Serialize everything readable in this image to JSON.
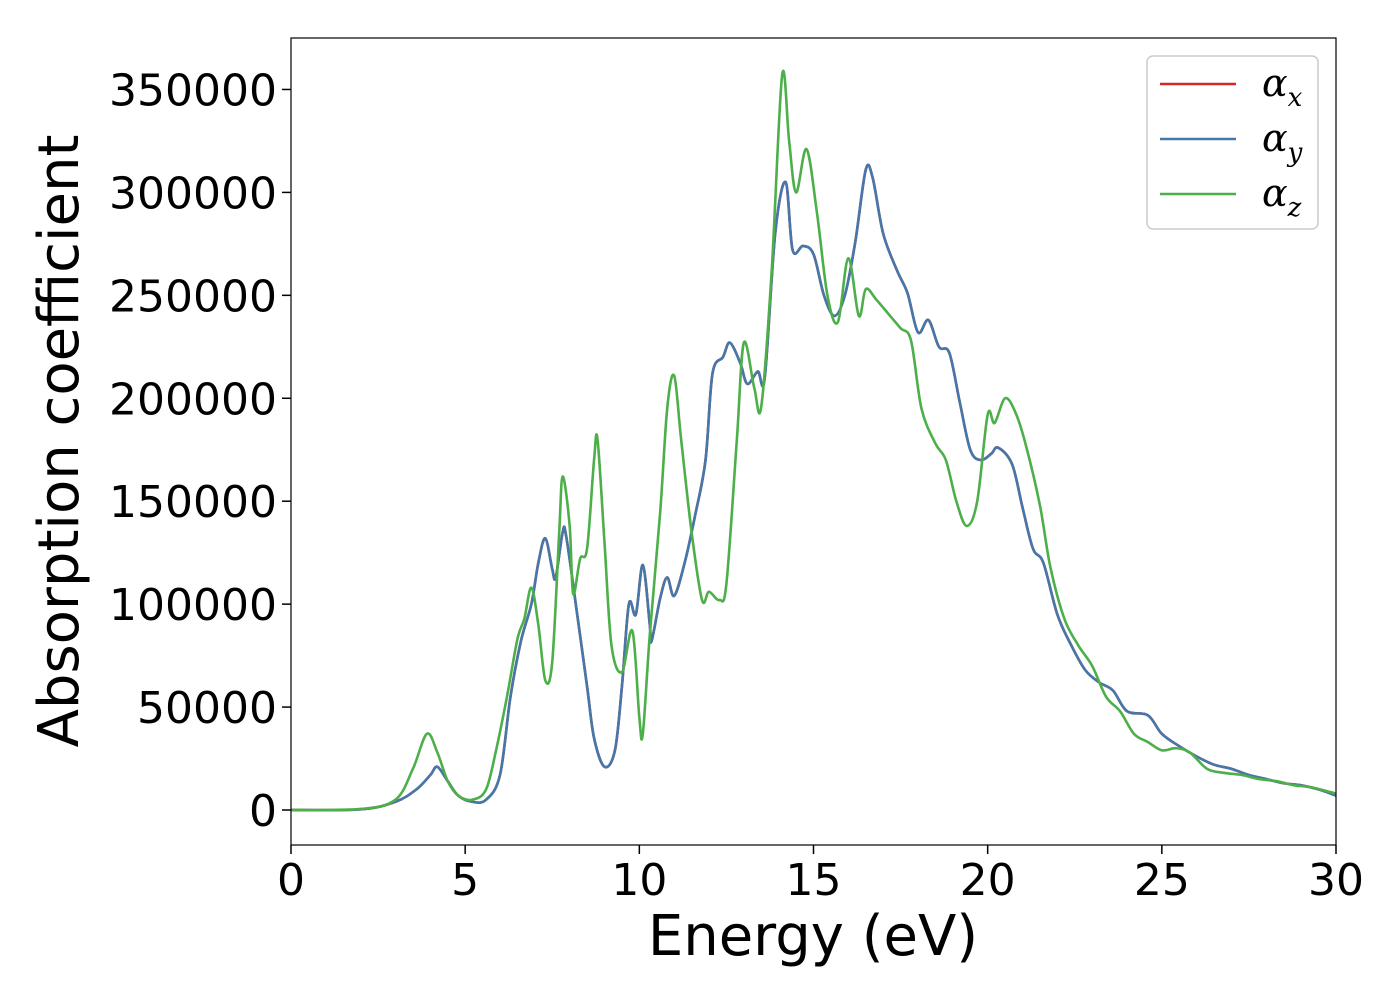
{
  "chart_data": {
    "type": "line",
    "xlabel": "Energy (eV)",
    "ylabel": "Absorption coefficient",
    "xlim": [
      0,
      30
    ],
    "ylim": [
      -17000,
      375000
    ],
    "xticks": [
      "0",
      "5",
      "10",
      "15",
      "20",
      "25",
      "30"
    ],
    "yticks": [
      "0",
      "50000",
      "100000",
      "150000",
      "200000",
      "250000",
      "300000",
      "350000"
    ],
    "grid": false,
    "legend_position": "top-right",
    "series": [
      {
        "name": "α_x",
        "symbol": "α",
        "subscript": "x",
        "color": "#d62728",
        "points": [
          [
            0,
            0
          ],
          [
            2,
            300
          ],
          [
            3,
            4000
          ],
          [
            3.6,
            10000
          ],
          [
            4.0,
            17000
          ],
          [
            4.2,
            21000
          ],
          [
            4.5,
            14000
          ],
          [
            4.8,
            7000
          ],
          [
            5.2,
            4000
          ],
          [
            5.6,
            5000
          ],
          [
            6.0,
            17000
          ],
          [
            6.3,
            55000
          ],
          [
            6.6,
            82000
          ],
          [
            6.9,
            100000
          ],
          [
            7.1,
            120000
          ],
          [
            7.3,
            132000
          ],
          [
            7.5,
            117000
          ],
          [
            7.6,
            113000
          ],
          [
            7.8,
            135000
          ],
          [
            7.9,
            133000
          ],
          [
            8.2,
            97000
          ],
          [
            8.5,
            60000
          ],
          [
            8.7,
            35000
          ],
          [
            9.0,
            21000
          ],
          [
            9.3,
            29000
          ],
          [
            9.5,
            60000
          ],
          [
            9.7,
            100000
          ],
          [
            9.9,
            95000
          ],
          [
            10.1,
            119000
          ],
          [
            10.3,
            90000
          ],
          [
            10.35,
            82000
          ],
          [
            10.6,
            103000
          ],
          [
            10.8,
            113000
          ],
          [
            11.0,
            104000
          ],
          [
            11.3,
            120000
          ],
          [
            11.6,
            143000
          ],
          [
            11.9,
            170000
          ],
          [
            12.1,
            212000
          ],
          [
            12.4,
            220000
          ],
          [
            12.6,
            227000
          ],
          [
            12.9,
            217000
          ],
          [
            13.1,
            207000
          ],
          [
            13.4,
            213000
          ],
          [
            13.6,
            210000
          ],
          [
            13.9,
            280000
          ],
          [
            14.2,
            305000
          ],
          [
            14.4,
            272000
          ],
          [
            14.7,
            274000
          ],
          [
            15.0,
            270000
          ],
          [
            15.3,
            250000
          ],
          [
            15.6,
            240000
          ],
          [
            15.9,
            250000
          ],
          [
            16.2,
            276000
          ],
          [
            16.5,
            311000
          ],
          [
            16.7,
            307000
          ],
          [
            17.0,
            280000
          ],
          [
            17.4,
            262000
          ],
          [
            17.7,
            251000
          ],
          [
            18.0,
            232000
          ],
          [
            18.3,
            238000
          ],
          [
            18.6,
            225000
          ],
          [
            18.9,
            222000
          ],
          [
            19.2,
            198000
          ],
          [
            19.5,
            175000
          ],
          [
            19.8,
            170000
          ],
          [
            20.1,
            173000
          ],
          [
            20.3,
            176000
          ],
          [
            20.7,
            168000
          ],
          [
            21.0,
            147000
          ],
          [
            21.3,
            127000
          ],
          [
            21.6,
            120000
          ],
          [
            22.0,
            95000
          ],
          [
            22.4,
            80000
          ],
          [
            22.8,
            68000
          ],
          [
            23.2,
            62000
          ],
          [
            23.6,
            58000
          ],
          [
            24.0,
            48000
          ],
          [
            24.6,
            46000
          ],
          [
            25.0,
            37000
          ],
          [
            25.5,
            31000
          ],
          [
            26.0,
            26000
          ],
          [
            26.5,
            22000
          ],
          [
            27.0,
            20000
          ],
          [
            27.5,
            17000
          ],
          [
            28.0,
            15000
          ],
          [
            28.5,
            13000
          ],
          [
            29.0,
            12000
          ],
          [
            29.5,
            10000
          ],
          [
            30.0,
            7000
          ]
        ]
      },
      {
        "name": "α_y",
        "symbol": "α",
        "subscript": "y",
        "color": "#4477aa",
        "points": [
          [
            0,
            0
          ],
          [
            2,
            300
          ],
          [
            3,
            4000
          ],
          [
            3.6,
            10000
          ],
          [
            4.0,
            17000
          ],
          [
            4.2,
            21000
          ],
          [
            4.5,
            14000
          ],
          [
            4.8,
            7000
          ],
          [
            5.2,
            4000
          ],
          [
            5.6,
            5000
          ],
          [
            6.0,
            17000
          ],
          [
            6.3,
            55000
          ],
          [
            6.6,
            82000
          ],
          [
            6.9,
            100000
          ],
          [
            7.1,
            120000
          ],
          [
            7.3,
            132000
          ],
          [
            7.5,
            117000
          ],
          [
            7.6,
            113000
          ],
          [
            7.8,
            135000
          ],
          [
            7.9,
            133000
          ],
          [
            8.2,
            97000
          ],
          [
            8.5,
            60000
          ],
          [
            8.7,
            35000
          ],
          [
            9.0,
            21000
          ],
          [
            9.3,
            29000
          ],
          [
            9.5,
            60000
          ],
          [
            9.7,
            100000
          ],
          [
            9.9,
            95000
          ],
          [
            10.1,
            119000
          ],
          [
            10.3,
            90000
          ],
          [
            10.35,
            82000
          ],
          [
            10.6,
            103000
          ],
          [
            10.8,
            113000
          ],
          [
            11.0,
            104000
          ],
          [
            11.3,
            120000
          ],
          [
            11.6,
            143000
          ],
          [
            11.9,
            170000
          ],
          [
            12.1,
            212000
          ],
          [
            12.4,
            220000
          ],
          [
            12.6,
            227000
          ],
          [
            12.9,
            217000
          ],
          [
            13.1,
            207000
          ],
          [
            13.4,
            213000
          ],
          [
            13.6,
            210000
          ],
          [
            13.9,
            280000
          ],
          [
            14.2,
            305000
          ],
          [
            14.4,
            272000
          ],
          [
            14.7,
            274000
          ],
          [
            15.0,
            270000
          ],
          [
            15.3,
            250000
          ],
          [
            15.6,
            240000
          ],
          [
            15.9,
            250000
          ],
          [
            16.2,
            276000
          ],
          [
            16.5,
            311000
          ],
          [
            16.7,
            307000
          ],
          [
            17.0,
            280000
          ],
          [
            17.4,
            262000
          ],
          [
            17.7,
            251000
          ],
          [
            18.0,
            232000
          ],
          [
            18.3,
            238000
          ],
          [
            18.6,
            225000
          ],
          [
            18.9,
            222000
          ],
          [
            19.2,
            198000
          ],
          [
            19.5,
            175000
          ],
          [
            19.8,
            170000
          ],
          [
            20.1,
            173000
          ],
          [
            20.3,
            176000
          ],
          [
            20.7,
            168000
          ],
          [
            21.0,
            147000
          ],
          [
            21.3,
            127000
          ],
          [
            21.6,
            120000
          ],
          [
            22.0,
            95000
          ],
          [
            22.4,
            80000
          ],
          [
            22.8,
            68000
          ],
          [
            23.2,
            62000
          ],
          [
            23.6,
            58000
          ],
          [
            24.0,
            48000
          ],
          [
            24.6,
            46000
          ],
          [
            25.0,
            37000
          ],
          [
            25.5,
            31000
          ],
          [
            26.0,
            26000
          ],
          [
            26.5,
            22000
          ],
          [
            27.0,
            20000
          ],
          [
            27.5,
            17000
          ],
          [
            28.0,
            15000
          ],
          [
            28.5,
            13000
          ],
          [
            29.0,
            12000
          ],
          [
            29.5,
            10000
          ],
          [
            30.0,
            7000
          ]
        ]
      },
      {
        "name": "α_z",
        "symbol": "α",
        "subscript": "z",
        "color": "#4daf4a",
        "points": [
          [
            0,
            0
          ],
          [
            2,
            500
          ],
          [
            3,
            5000
          ],
          [
            3.5,
            20000
          ],
          [
            3.9,
            37000
          ],
          [
            4.2,
            28000
          ],
          [
            4.5,
            14000
          ],
          [
            4.8,
            7000
          ],
          [
            5.2,
            5000
          ],
          [
            5.6,
            10000
          ],
          [
            5.9,
            30000
          ],
          [
            6.2,
            55000
          ],
          [
            6.5,
            83000
          ],
          [
            6.7,
            93000
          ],
          [
            6.9,
            108000
          ],
          [
            7.1,
            90000
          ],
          [
            7.3,
            63000
          ],
          [
            7.5,
            72000
          ],
          [
            7.7,
            135000
          ],
          [
            7.8,
            162000
          ],
          [
            8.0,
            138000
          ],
          [
            8.1,
            105000
          ],
          [
            8.3,
            122000
          ],
          [
            8.5,
            127000
          ],
          [
            8.7,
            170000
          ],
          [
            8.8,
            180000
          ],
          [
            9.0,
            130000
          ],
          [
            9.2,
            80000
          ],
          [
            9.5,
            67000
          ],
          [
            9.8,
            87000
          ],
          [
            10.0,
            45000
          ],
          [
            10.1,
            37000
          ],
          [
            10.3,
            85000
          ],
          [
            10.6,
            145000
          ],
          [
            10.8,
            195000
          ],
          [
            11.0,
            211000
          ],
          [
            11.2,
            180000
          ],
          [
            11.5,
            135000
          ],
          [
            11.8,
            102000
          ],
          [
            12.0,
            106000
          ],
          [
            12.3,
            102000
          ],
          [
            12.5,
            110000
          ],
          [
            12.8,
            180000
          ],
          [
            13.0,
            227000
          ],
          [
            13.3,
            205000
          ],
          [
            13.5,
            196000
          ],
          [
            13.8,
            262000
          ],
          [
            14.1,
            357000
          ],
          [
            14.3,
            325000
          ],
          [
            14.5,
            300000
          ],
          [
            14.8,
            321000
          ],
          [
            15.1,
            290000
          ],
          [
            15.4,
            250000
          ],
          [
            15.7,
            237000
          ],
          [
            16.0,
            268000
          ],
          [
            16.3,
            240000
          ],
          [
            16.5,
            253000
          ],
          [
            16.8,
            248000
          ],
          [
            17.2,
            240000
          ],
          [
            17.5,
            234000
          ],
          [
            17.8,
            228000
          ],
          [
            18.1,
            195000
          ],
          [
            18.5,
            178000
          ],
          [
            18.8,
            170000
          ],
          [
            19.1,
            150000
          ],
          [
            19.4,
            138000
          ],
          [
            19.7,
            150000
          ],
          [
            20.0,
            192000
          ],
          [
            20.2,
            188000
          ],
          [
            20.5,
            200000
          ],
          [
            20.8,
            193000
          ],
          [
            21.1,
            177000
          ],
          [
            21.5,
            148000
          ],
          [
            21.8,
            118000
          ],
          [
            22.2,
            93000
          ],
          [
            22.6,
            80000
          ],
          [
            23.0,
            70000
          ],
          [
            23.4,
            55000
          ],
          [
            23.8,
            48000
          ],
          [
            24.2,
            37000
          ],
          [
            24.6,
            33000
          ],
          [
            25.0,
            29000
          ],
          [
            25.4,
            30000
          ],
          [
            25.8,
            28000
          ],
          [
            26.3,
            20000
          ],
          [
            26.8,
            18000
          ],
          [
            27.3,
            17000
          ],
          [
            27.8,
            15000
          ],
          [
            28.3,
            14000
          ],
          [
            28.8,
            12000
          ],
          [
            29.3,
            11000
          ],
          [
            30.0,
            8000
          ]
        ]
      }
    ]
  }
}
